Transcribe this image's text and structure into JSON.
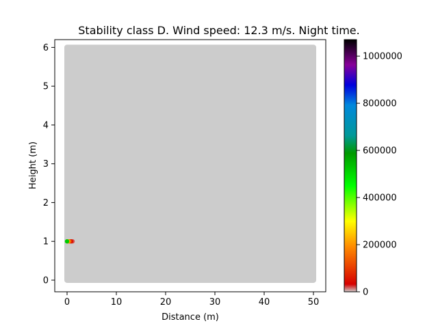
{
  "chart_data": {
    "type": "heatmap",
    "title": "Stability class D. Wind speed: 12.3 m/s. Night time.",
    "xlabel": "Distance (m)",
    "ylabel": "Height (m)",
    "xlim": [
      -2.5,
      52.5
    ],
    "ylim": [
      -0.3,
      6.2
    ],
    "xticks": [
      0,
      10,
      20,
      30,
      40,
      50
    ],
    "yticks": [
      0,
      1,
      2,
      3,
      4,
      5,
      6
    ],
    "x_tick_labels": [
      "0",
      "10",
      "20",
      "30",
      "40",
      "50"
    ],
    "y_tick_labels": [
      "0",
      "1",
      "2",
      "3",
      "4",
      "5",
      "6"
    ],
    "grid": false,
    "colorbar": {
      "label": "",
      "min": 0,
      "max": 1070000,
      "ticks": [
        0,
        200000,
        400000,
        600000,
        800000,
        1000000
      ],
      "tick_labels": [
        "0",
        "200000",
        "400000",
        "600000",
        "800000",
        "1000000"
      ],
      "colormap": "nipy_spectral_r-like"
    },
    "field": {
      "x_range": [
        0,
        50
      ],
      "y_range": [
        0,
        6
      ],
      "background_value": 0,
      "background_color": "#cccccc"
    },
    "source": {
      "x": 0,
      "y": 1,
      "peak_value": 1070000
    },
    "plume": [
      {
        "x": 0.0,
        "y": 1.0,
        "value": 520000
      },
      {
        "x": 0.25,
        "y": 1.0,
        "value": 210000
      },
      {
        "x": 0.5,
        "y": 1.0,
        "value": 120000
      },
      {
        "x": 0.8,
        "y": 1.0,
        "value": 50000
      },
      {
        "x": 1.1,
        "y": 1.0,
        "value": 20000
      }
    ]
  },
  "colors": {
    "plot_frame": "#000000",
    "background": "#ffffff",
    "field_background": "#cccccc"
  }
}
